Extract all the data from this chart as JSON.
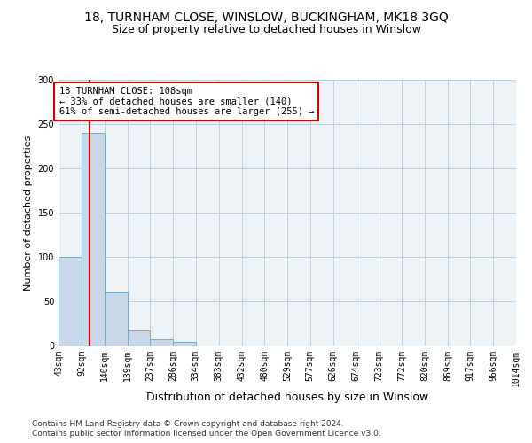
{
  "title1": "18, TURNHAM CLOSE, WINSLOW, BUCKINGHAM, MK18 3GQ",
  "title2": "Size of property relative to detached houses in Winslow",
  "xlabel": "Distribution of detached houses by size in Winslow",
  "ylabel": "Number of detached properties",
  "footnote1": "Contains HM Land Registry data © Crown copyright and database right 2024.",
  "footnote2": "Contains public sector information licensed under the Open Government Licence v3.0.",
  "bin_edges": [
    43,
    92,
    140,
    189,
    237,
    286,
    334,
    383,
    432,
    480,
    529,
    577,
    626,
    674,
    723,
    772,
    820,
    869,
    917,
    966,
    1014
  ],
  "bar_heights": [
    100,
    240,
    60,
    17,
    7,
    4,
    0,
    0,
    0,
    0,
    0,
    0,
    0,
    0,
    0,
    0,
    0,
    0,
    0,
    0
  ],
  "bar_color": "#c8d8e8",
  "bar_edge_color": "#7aa8c8",
  "property_size": 108,
  "vline_color": "#cc0000",
  "annotation_line1": "18 TURNHAM CLOSE: 108sqm",
  "annotation_line2": "← 33% of detached houses are smaller (140)",
  "annotation_line3": "61% of semi-detached houses are larger (255) →",
  "annotation_box_color": "#cc0000",
  "ylim": [
    0,
    300
  ],
  "yticks": [
    0,
    50,
    100,
    150,
    200,
    250,
    300
  ],
  "grid_color": "#c0cfe0",
  "bg_color": "#eef3f8",
  "title1_fontsize": 10,
  "title2_fontsize": 9,
  "tick_fontsize": 7,
  "ylabel_fontsize": 8,
  "xlabel_fontsize": 9,
  "annotation_fontsize": 7.5,
  "footnote_fontsize": 6.5
}
